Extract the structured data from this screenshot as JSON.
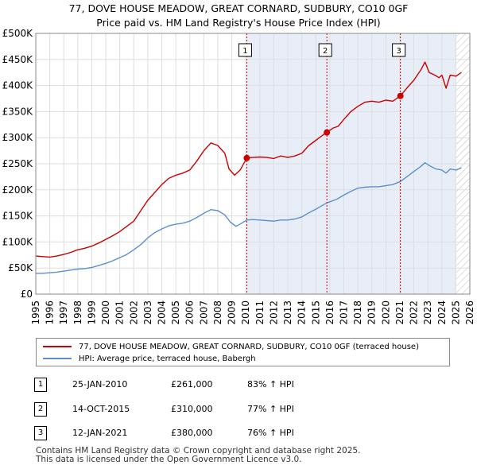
{
  "title_line1": "77, DOVE HOUSE MEADOW, GREAT CORNARD, SUDBURY, CO10 0GF",
  "title_line2": "Price paid vs. HM Land Registry's House Price Index (HPI)",
  "colors": {
    "property_line": "#cc0000",
    "hpi_line": "#5b8fcf",
    "shade": "#e8eef8",
    "marker_line": "#cc0000",
    "grid": "#dddddd"
  },
  "chart_data": {
    "type": "line",
    "title": "Price paid vs. HM Land Registry's House Price Index (HPI)",
    "xlabel": "",
    "ylabel": "",
    "xlim": [
      1995,
      2026
    ],
    "ylim": [
      0,
      500000
    ],
    "x_ticks": [
      1995,
      1996,
      1997,
      1998,
      1999,
      2000,
      2001,
      2002,
      2003,
      2004,
      2005,
      2006,
      2007,
      2008,
      2009,
      2010,
      2011,
      2012,
      2013,
      2014,
      2015,
      2016,
      2017,
      2018,
      2019,
      2020,
      2021,
      2022,
      2023,
      2024,
      2025,
      2026
    ],
    "y_ticks": [
      {
        "value": 0,
        "label": "£0"
      },
      {
        "value": 50000,
        "label": "£50K"
      },
      {
        "value": 100000,
        "label": "£100K"
      },
      {
        "value": 150000,
        "label": "£150K"
      },
      {
        "value": 200000,
        "label": "£200K"
      },
      {
        "value": 250000,
        "label": "£250K"
      },
      {
        "value": 300000,
        "label": "£300K"
      },
      {
        "value": 350000,
        "label": "£350K"
      },
      {
        "value": 400000,
        "label": "£400K"
      },
      {
        "value": 450000,
        "label": "£450K"
      },
      {
        "value": 500000,
        "label": "£500K"
      }
    ],
    "shaded_from": 2010.07,
    "future_from": 2025.0,
    "series": [
      {
        "name": "77, DOVE HOUSE MEADOW, GREAT CORNARD, SUDBURY, CO10 0GF (terraced house)",
        "points": [
          [
            1995.0,
            73000
          ],
          [
            1995.5,
            72000
          ],
          [
            1996.0,
            71000
          ],
          [
            1996.5,
            73000
          ],
          [
            1997.0,
            76000
          ],
          [
            1997.5,
            80000
          ],
          [
            1998.0,
            85000
          ],
          [
            1998.5,
            88000
          ],
          [
            1999.0,
            92000
          ],
          [
            1999.5,
            98000
          ],
          [
            2000.0,
            105000
          ],
          [
            2000.5,
            112000
          ],
          [
            2001.0,
            120000
          ],
          [
            2001.5,
            130000
          ],
          [
            2002.0,
            140000
          ],
          [
            2002.5,
            160000
          ],
          [
            2003.0,
            180000
          ],
          [
            2003.5,
            195000
          ],
          [
            2004.0,
            210000
          ],
          [
            2004.5,
            222000
          ],
          [
            2005.0,
            228000
          ],
          [
            2005.5,
            232000
          ],
          [
            2006.0,
            238000
          ],
          [
            2006.5,
            255000
          ],
          [
            2007.0,
            275000
          ],
          [
            2007.5,
            290000
          ],
          [
            2008.0,
            285000
          ],
          [
            2008.5,
            270000
          ],
          [
            2008.8,
            240000
          ],
          [
            2009.2,
            228000
          ],
          [
            2009.6,
            238000
          ],
          [
            2010.07,
            261000
          ],
          [
            2010.5,
            262000
          ],
          [
            2011.0,
            263000
          ],
          [
            2011.5,
            262000
          ],
          [
            2012.0,
            260000
          ],
          [
            2012.5,
            265000
          ],
          [
            2013.0,
            262000
          ],
          [
            2013.5,
            265000
          ],
          [
            2014.0,
            270000
          ],
          [
            2014.5,
            285000
          ],
          [
            2015.0,
            295000
          ],
          [
            2015.5,
            305000
          ],
          [
            2015.79,
            310000
          ],
          [
            2016.2,
            318000
          ],
          [
            2016.6,
            322000
          ],
          [
            2017.0,
            335000
          ],
          [
            2017.5,
            350000
          ],
          [
            2018.0,
            360000
          ],
          [
            2018.5,
            368000
          ],
          [
            2019.0,
            370000
          ],
          [
            2019.5,
            368000
          ],
          [
            2020.0,
            372000
          ],
          [
            2020.5,
            370000
          ],
          [
            2021.04,
            380000
          ],
          [
            2021.5,
            395000
          ],
          [
            2022.0,
            410000
          ],
          [
            2022.5,
            430000
          ],
          [
            2022.8,
            445000
          ],
          [
            2023.1,
            425000
          ],
          [
            2023.5,
            420000
          ],
          [
            2023.8,
            415000
          ],
          [
            2024.0,
            420000
          ],
          [
            2024.3,
            395000
          ],
          [
            2024.6,
            420000
          ],
          [
            2025.0,
            418000
          ],
          [
            2025.4,
            425000
          ]
        ]
      },
      {
        "name": "HPI: Average price, terraced house, Babergh",
        "points": [
          [
            1995.0,
            40000
          ],
          [
            1995.5,
            40000
          ],
          [
            1996.0,
            41000
          ],
          [
            1996.5,
            42000
          ],
          [
            1997.0,
            44000
          ],
          [
            1997.5,
            46000
          ],
          [
            1998.0,
            48000
          ],
          [
            1998.5,
            49000
          ],
          [
            1999.0,
            51000
          ],
          [
            1999.5,
            55000
          ],
          [
            2000.0,
            59000
          ],
          [
            2000.5,
            64000
          ],
          [
            2001.0,
            70000
          ],
          [
            2001.5,
            76000
          ],
          [
            2002.0,
            85000
          ],
          [
            2002.5,
            95000
          ],
          [
            2003.0,
            108000
          ],
          [
            2003.5,
            118000
          ],
          [
            2004.0,
            125000
          ],
          [
            2004.5,
            131000
          ],
          [
            2005.0,
            134000
          ],
          [
            2005.5,
            136000
          ],
          [
            2006.0,
            140000
          ],
          [
            2006.5,
            147000
          ],
          [
            2007.0,
            155000
          ],
          [
            2007.5,
            162000
          ],
          [
            2008.0,
            160000
          ],
          [
            2008.5,
            152000
          ],
          [
            2008.9,
            138000
          ],
          [
            2009.3,
            130000
          ],
          [
            2009.7,
            136000
          ],
          [
            2010.07,
            142000
          ],
          [
            2010.5,
            143000
          ],
          [
            2011.0,
            142000
          ],
          [
            2011.5,
            141000
          ],
          [
            2012.0,
            140000
          ],
          [
            2012.5,
            142000
          ],
          [
            2013.0,
            142000
          ],
          [
            2013.5,
            144000
          ],
          [
            2014.0,
            148000
          ],
          [
            2014.5,
            156000
          ],
          [
            2015.0,
            163000
          ],
          [
            2015.79,
            175000
          ],
          [
            2016.5,
            182000
          ],
          [
            2017.0,
            190000
          ],
          [
            2017.5,
            197000
          ],
          [
            2018.0,
            203000
          ],
          [
            2018.5,
            205000
          ],
          [
            2019.0,
            206000
          ],
          [
            2019.5,
            206000
          ],
          [
            2020.0,
            208000
          ],
          [
            2020.5,
            210000
          ],
          [
            2021.04,
            216000
          ],
          [
            2021.5,
            225000
          ],
          [
            2022.0,
            235000
          ],
          [
            2022.5,
            245000
          ],
          [
            2022.8,
            252000
          ],
          [
            2023.2,
            245000
          ],
          [
            2023.6,
            240000
          ],
          [
            2024.0,
            238000
          ],
          [
            2024.3,
            232000
          ],
          [
            2024.6,
            240000
          ],
          [
            2025.0,
            238000
          ],
          [
            2025.4,
            242000
          ]
        ]
      }
    ],
    "sales": [
      {
        "marker": "1",
        "x": 2010.07,
        "value": 261000
      },
      {
        "marker": "2",
        "x": 2015.79,
        "value": 310000
      },
      {
        "marker": "3",
        "x": 2021.04,
        "value": 380000
      }
    ]
  },
  "legend": {
    "property_label": "77, DOVE HOUSE MEADOW, GREAT CORNARD, SUDBURY, CO10 0GF (terraced house)",
    "hpi_label": "HPI: Average price, terraced house, Babergh"
  },
  "transactions": [
    {
      "num": "1",
      "date": "25-JAN-2010",
      "price": "£261,000",
      "hpi": "83% ↑ HPI"
    },
    {
      "num": "2",
      "date": "14-OCT-2015",
      "price": "£310,000",
      "hpi": "77% ↑ HPI"
    },
    {
      "num": "3",
      "date": "12-JAN-2021",
      "price": "£380,000",
      "hpi": "76% ↑ HPI"
    }
  ],
  "footer": {
    "line1": "Contains HM Land Registry data © Crown copyright and database right 2025.",
    "line2": "This data is licensed under the Open Government Licence v3.0."
  }
}
